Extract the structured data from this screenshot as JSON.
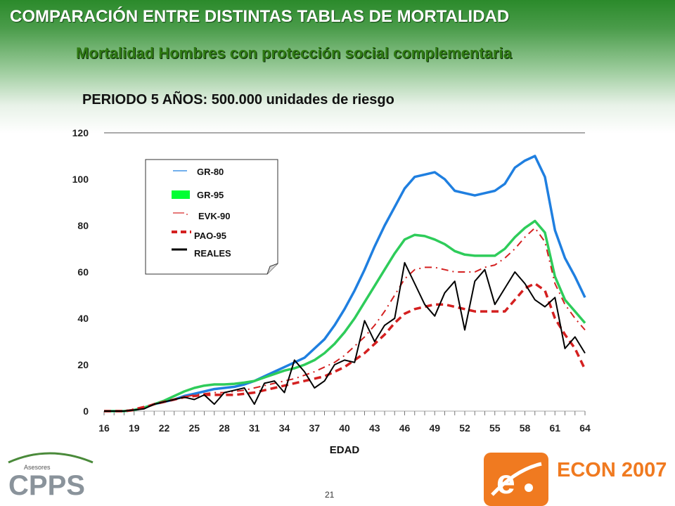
{
  "header": {
    "title": "COMPARACIÓN ENTRE DISTINTAS TABLAS DE MORTALIDAD",
    "subtitle": "Mortalidad Hombres con protección social complementaria",
    "period": "PERIODO 5 AÑOS: 500.000 unidades de riesgo"
  },
  "footer": {
    "page_number": "21",
    "cpps_small_text": "Asesores",
    "cpps_logo_text": "CPPS",
    "econ_text": "ECON 2007",
    "econ_logo_letter": "e"
  },
  "colors": {
    "gr80": "#1f7fe0",
    "gr95": "#2ecc5a",
    "evk90": "#d42020",
    "pao95": "#d42020",
    "reales": "#000000",
    "title": "#ffffff",
    "subtitle": "#2f7a12",
    "econ_orange": "#f07a20"
  },
  "chart_data": {
    "type": "line",
    "xlabel": "EDAD",
    "ylabel": "",
    "xlim": [
      16,
      64
    ],
    "ylim": [
      0,
      120
    ],
    "x_ticks": [
      "16",
      "19",
      "22",
      "25",
      "28",
      "31",
      "34",
      "37",
      "40",
      "43",
      "46",
      "49",
      "52",
      "55",
      "58",
      "61",
      "64"
    ],
    "y_ticks": [
      "0",
      "20",
      "40",
      "60",
      "80",
      "100",
      "120"
    ],
    "grid": "top line only",
    "legend_position": "upper-left",
    "x": [
      16,
      17,
      18,
      19,
      20,
      21,
      22,
      23,
      24,
      25,
      26,
      27,
      28,
      29,
      30,
      31,
      32,
      33,
      34,
      35,
      36,
      37,
      38,
      39,
      40,
      41,
      42,
      43,
      44,
      45,
      46,
      47,
      48,
      49,
      50,
      51,
      52,
      53,
      54,
      55,
      56,
      57,
      58,
      59,
      60,
      61,
      62,
      63,
      64
    ],
    "series": [
      {
        "name": "GR-80",
        "style": "solid-thin",
        "values": [
          0,
          0,
          0,
          0.5,
          1.5,
          3,
          4,
          5,
          6.5,
          7.5,
          8.5,
          9.5,
          10,
          10.5,
          11.5,
          13,
          15,
          17,
          19,
          21,
          23,
          27,
          31,
          37,
          44,
          52,
          61,
          71,
          80,
          88,
          96,
          101,
          102,
          103,
          100,
          95,
          94,
          93,
          94,
          95,
          98,
          105,
          108,
          110,
          101,
          78,
          66,
          58,
          49
        ]
      },
      {
        "name": "GR-95",
        "style": "solid-green",
        "values": [
          0,
          0,
          0,
          0.5,
          1.5,
          3,
          4.5,
          6.5,
          8.5,
          10,
          11,
          11.5,
          11.5,
          11.8,
          12.3,
          13,
          14.5,
          16,
          17.5,
          18.5,
          20,
          22,
          25,
          29,
          34,
          40,
          47,
          54,
          61,
          68,
          74,
          76,
          75.5,
          74,
          72,
          69,
          67.5,
          67,
          67,
          67,
          70,
          75,
          79,
          82,
          77,
          58,
          48,
          43,
          38
        ]
      },
      {
        "name": "EVK-90",
        "style": "dashdot",
        "values": [
          0,
          0,
          0,
          1,
          2,
          3,
          4,
          5,
          6,
          7,
          7.5,
          8,
          8,
          8.5,
          9,
          10,
          11,
          12,
          13,
          14,
          15.5,
          17,
          19,
          21,
          24,
          28,
          32,
          37,
          43,
          50,
          57,
          61,
          62,
          62,
          61,
          60,
          60,
          60,
          62,
          63,
          66,
          70,
          75,
          79,
          73,
          55,
          46,
          40,
          35
        ]
      },
      {
        "name": "PAO-95",
        "style": "dashed",
        "values": [
          0,
          0,
          0,
          0.5,
          1.5,
          3,
          4,
          5,
          6,
          6.5,
          7,
          7,
          7,
          7,
          7.5,
          8,
          9,
          10,
          11,
          12,
          13,
          14,
          15,
          17,
          19,
          22,
          25,
          29,
          33,
          38,
          42,
          44,
          45,
          46,
          46,
          45,
          44,
          43,
          43,
          43,
          43,
          48,
          53,
          55,
          52,
          40,
          33,
          27,
          18
        ]
      },
      {
        "name": "REALES",
        "style": "solid-black",
        "values": [
          0,
          0,
          0,
          0.5,
          1,
          3,
          4,
          5,
          6,
          5,
          7,
          3,
          8,
          9,
          10,
          3,
          12,
          13,
          8,
          22,
          17,
          10,
          13,
          20,
          22,
          21,
          39,
          30,
          37,
          40,
          64,
          55,
          46,
          41,
          51,
          56,
          35,
          56,
          61,
          46,
          53,
          60,
          55,
          48,
          45,
          49,
          27,
          32,
          25
        ]
      }
    ]
  }
}
